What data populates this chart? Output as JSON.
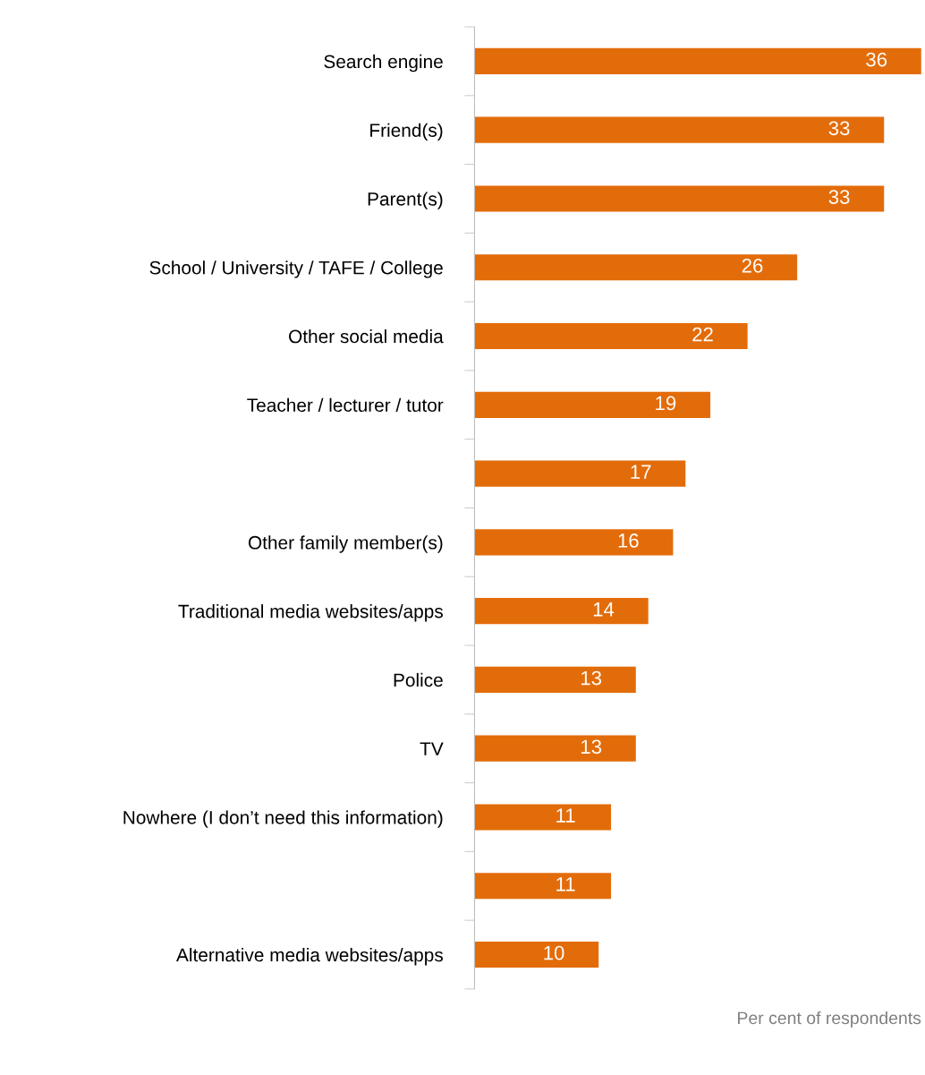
{
  "chart_data": {
    "type": "bar",
    "orientation": "horizontal",
    "xlabel": "Per cent of respondents",
    "categories": [
      "Search engine",
      "Friend(s)",
      "Parent(s)",
      "School / University / TAFE / College",
      "Other social media",
      "Teacher / lecturer / tutor",
      null,
      "Other family member(s)",
      "Traditional media websites/apps",
      "Police",
      "TV",
      "Nowhere (I don’t need this information)",
      null,
      "Alternative media websites/apps"
    ],
    "values": [
      36,
      33,
      33,
      26,
      22,
      19,
      17,
      16,
      14,
      13,
      13,
      11,
      11,
      10
    ],
    "color": "#e36c0a",
    "data_labels": true,
    "grid": false,
    "legend": false
  }
}
